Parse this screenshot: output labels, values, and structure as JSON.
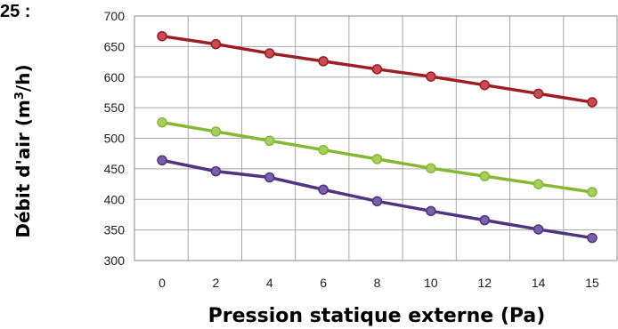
{
  "corner_label": "25 :",
  "chart_data": {
    "type": "line",
    "x_tick_labels": [
      "0",
      "2",
      "4",
      "6",
      "8",
      "10",
      "12",
      "14",
      "15"
    ],
    "xlabel": "Pression statique externe (Pa)",
    "ylabel": {
      "prefix": "Débit d'air (m",
      "superscript": "3",
      "suffix": "/h)"
    },
    "ylim": [
      300,
      700
    ],
    "y_ticks": [
      300,
      350,
      400,
      450,
      500,
      550,
      600,
      650,
      700
    ],
    "grid": true,
    "series": [
      {
        "color": "#9e1c23",
        "marker_color": "#c84a52",
        "values": [
          667,
          654,
          639,
          626,
          613,
          601,
          587,
          573,
          559
        ]
      },
      {
        "color": "#86b834",
        "marker_color": "#a6cf5e",
        "values": [
          526,
          511,
          496,
          481,
          466,
          451,
          438,
          425,
          412
        ]
      },
      {
        "color": "#4e3580",
        "marker_color": "#7a5fab",
        "values": [
          464,
          446,
          436,
          416,
          397,
          381,
          366,
          351,
          337
        ]
      }
    ]
  }
}
